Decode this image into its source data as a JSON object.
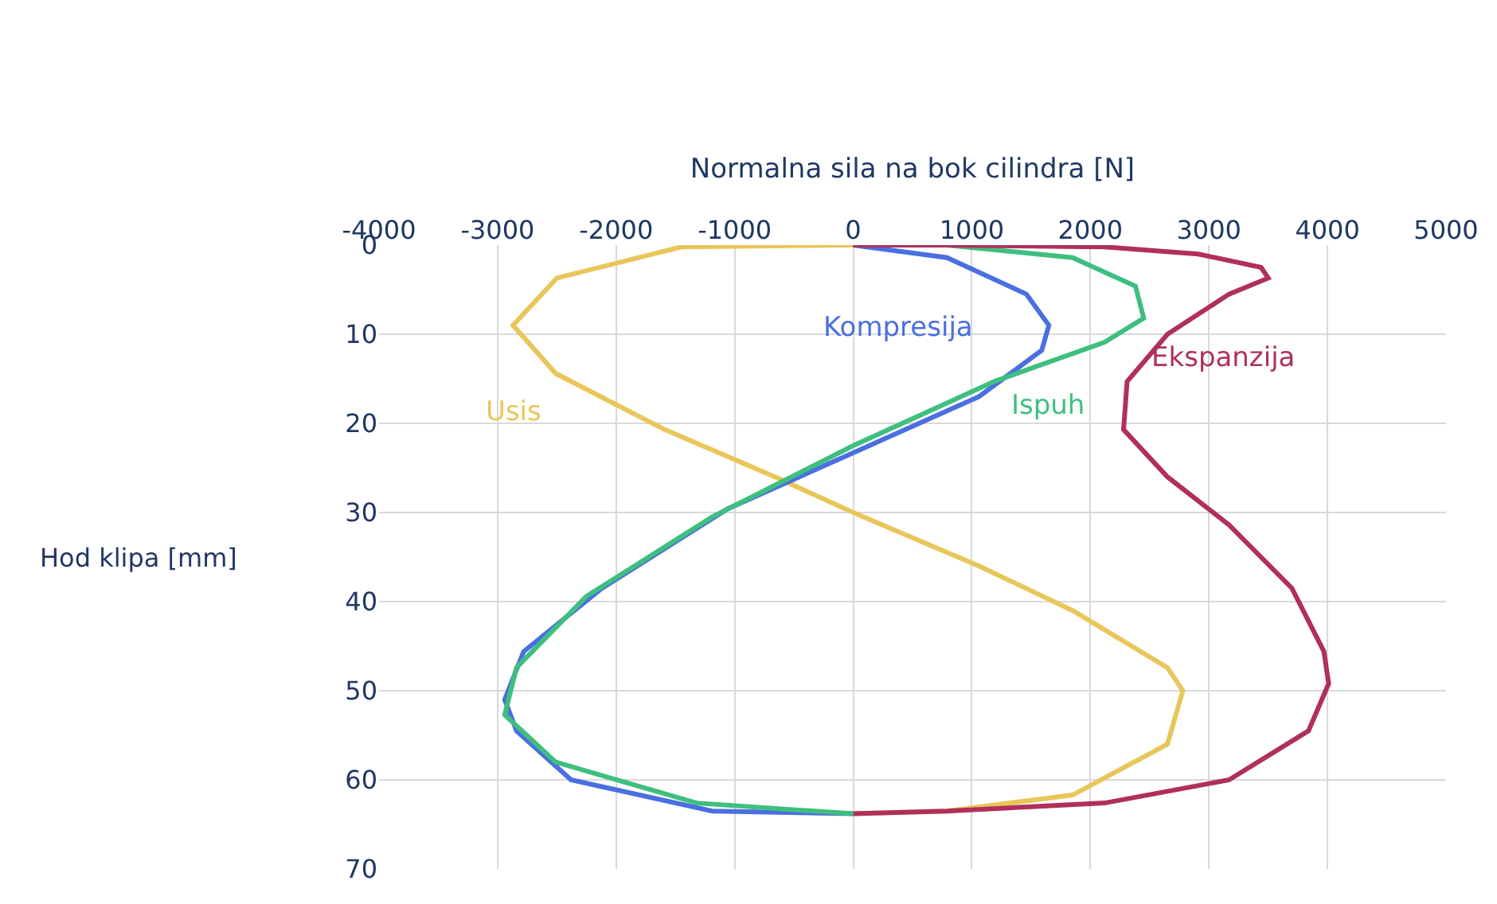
{
  "chart_data": {
    "type": "line",
    "xlabel": "Normalna sila na bok cilindra [N]",
    "ylabel": "Hod klipa [mm]",
    "xlim": [
      -4000,
      5000
    ],
    "xticks": [
      -4000,
      -3000,
      -2000,
      -1000,
      0,
      1000,
      2000,
      3000,
      4000,
      5000
    ],
    "ylim": [
      70,
      0
    ],
    "yticks": [
      0,
      10,
      20,
      30,
      40,
      50,
      60,
      70
    ],
    "grid": true,
    "legend": false,
    "marker": "none",
    "line_style": "solid",
    "series": [
      {
        "name": "Usis",
        "color": "#e8c65a",
        "x": [
          0,
          -1450,
          -2500,
          -2870,
          -2510,
          -1590,
          -660,
          0,
          1060,
          1850,
          2650,
          2780,
          2650,
          1850,
          790,
          0
        ],
        "values": [
          0,
          0.2,
          3.7,
          9,
          14.4,
          20.7,
          26,
          30,
          36,
          41,
          47.4,
          50,
          56,
          61.7,
          63.5,
          63.8
        ]
      },
      {
        "name": "Kompresija",
        "color": "#4a6fe0",
        "x": [
          0,
          -1190,
          -2380,
          -2840,
          -2940,
          -2780,
          -2120,
          -1060,
          0,
          1060,
          1590,
          1650,
          1460,
          790,
          0
        ],
        "values": [
          63.8,
          63.5,
          60,
          54.5,
          51,
          45.6,
          38.5,
          29.6,
          23.3,
          17,
          11.8,
          9,
          5.5,
          1.4,
          0
        ]
      },
      {
        "name": "Ispuh",
        "color": "#3fbf7f",
        "x": [
          0,
          -1320,
          -2510,
          -2940,
          -2840,
          -2250,
          -1190,
          0,
          1190,
          2120,
          2450,
          2380,
          1850,
          790,
          0
        ],
        "values": [
          63.8,
          62.6,
          58,
          52.7,
          47.4,
          39.4,
          30.5,
          22.5,
          15.3,
          10.9,
          8.2,
          4.6,
          1.4,
          0,
          0
        ]
      },
      {
        "name": "Ekspanzija",
        "color": "#b0305a",
        "x": [
          0,
          790,
          2120,
          2910,
          3440,
          3500,
          3170,
          2650,
          2310,
          2280,
          2650,
          3170,
          3700,
          3970,
          4010,
          3840,
          3170,
          2120,
          790,
          0
        ],
        "values": [
          0,
          0,
          0.2,
          1,
          2.5,
          3.7,
          5.5,
          10,
          15.3,
          20.7,
          26,
          31.4,
          38.5,
          45.6,
          49.2,
          54.5,
          60,
          62.6,
          63.5,
          63.8
        ]
      }
    ]
  }
}
